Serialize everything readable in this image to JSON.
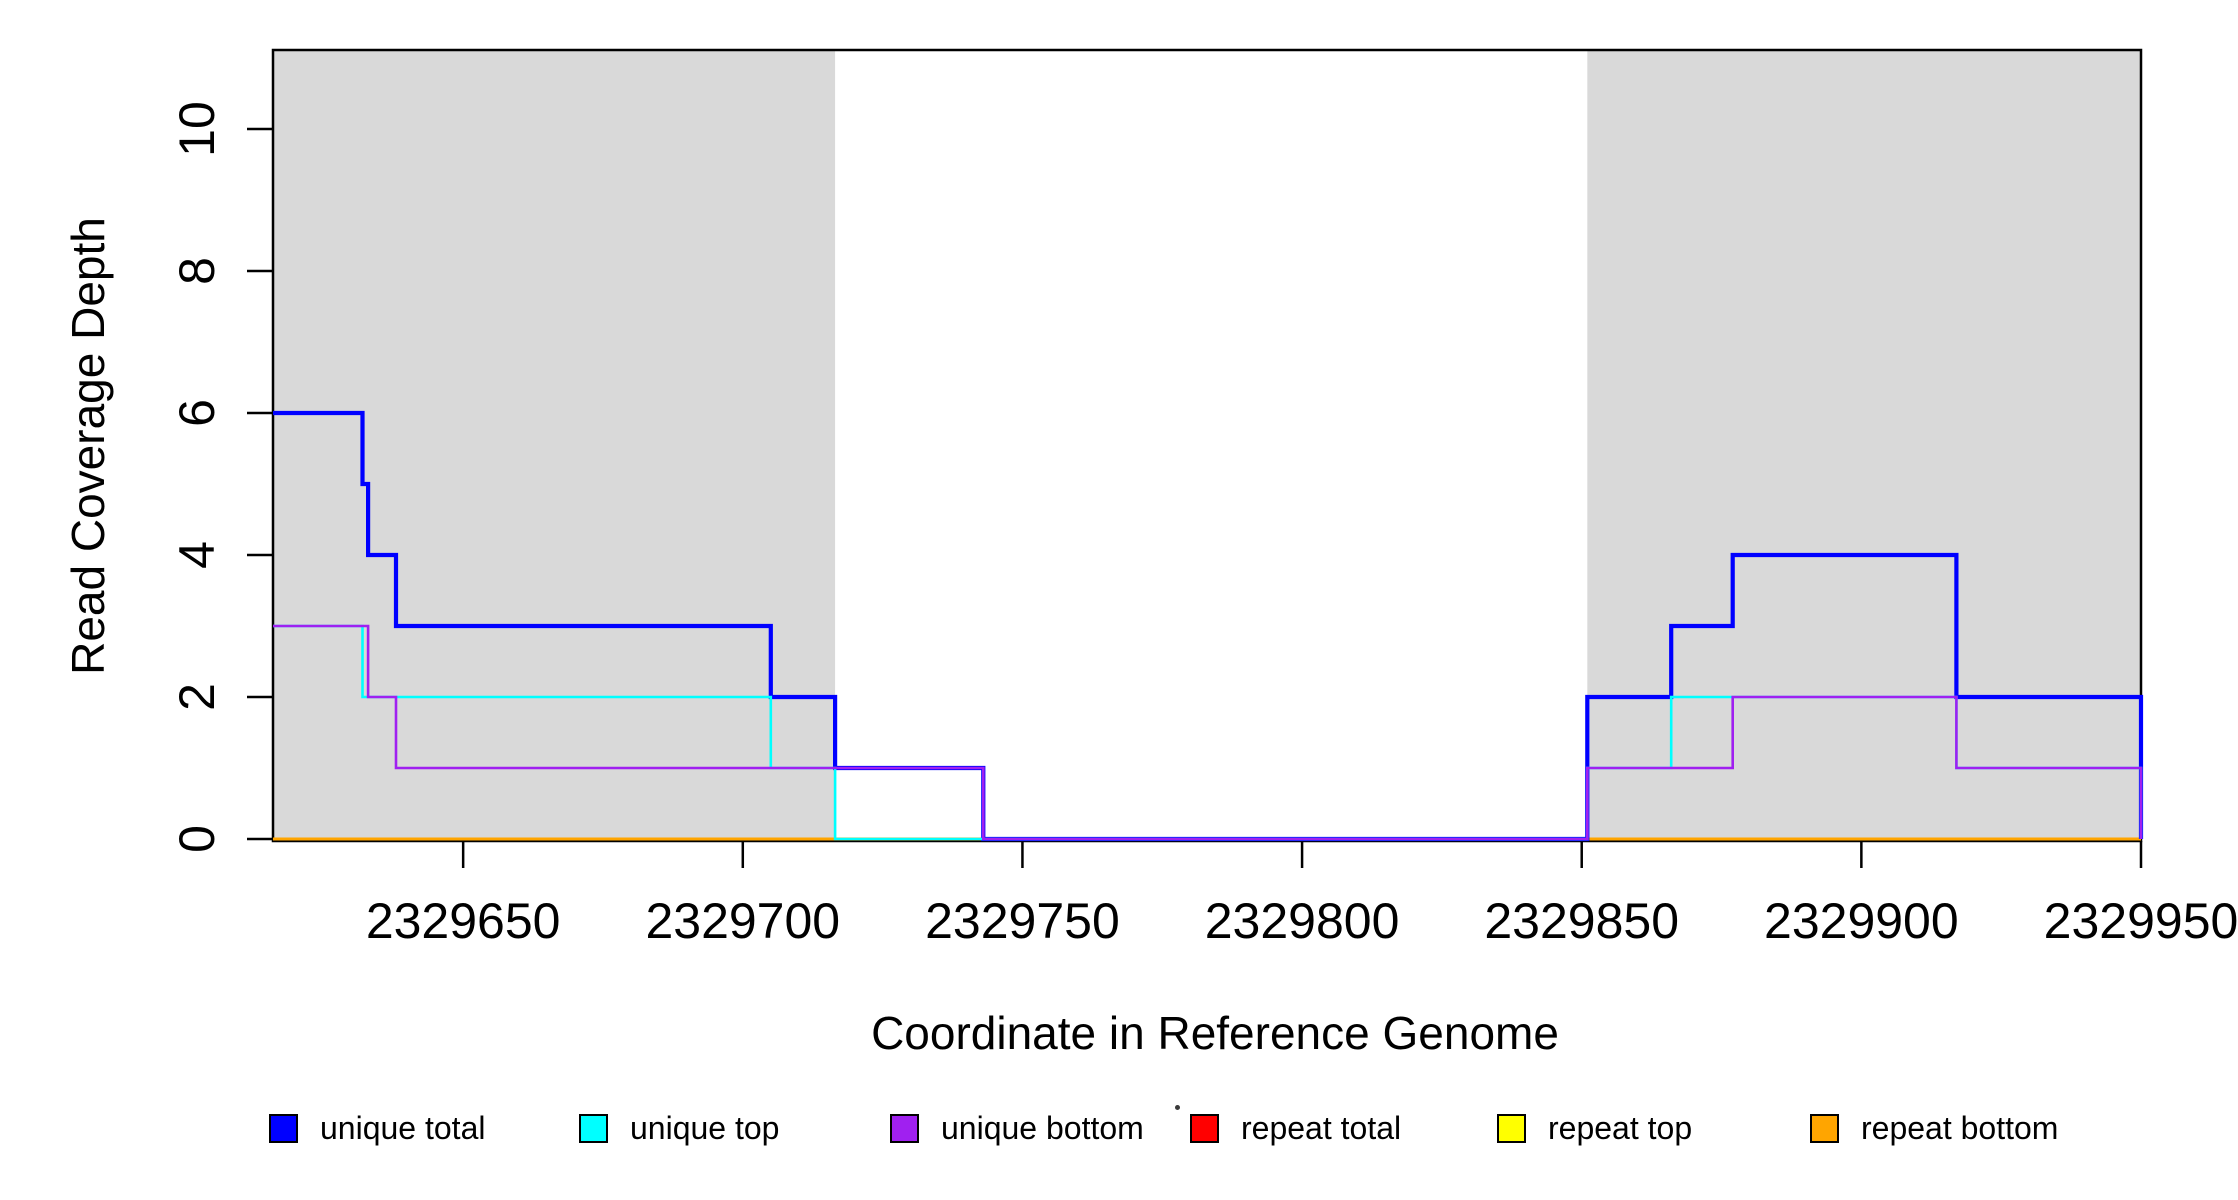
{
  "chart_data": {
    "type": "line",
    "subtype": "step",
    "title": "",
    "xlabel": "Coordinate in Reference Genome",
    "ylabel": "Read Coverage Depth",
    "xlim": [
      2329616,
      2329950
    ],
    "ylim": [
      0,
      11.1
    ],
    "x_ticks": [
      2329650,
      2329700,
      2329750,
      2329800,
      2329850,
      2329900,
      2329950
    ],
    "y_ticks": [
      0,
      2,
      4,
      6,
      8,
      10
    ],
    "grid": false,
    "legend_position": "bottom",
    "background_color": "#FFFFFF",
    "axis_color": "#000000",
    "shaded_region_color": "#D9D9D9",
    "shaded_regions": [
      {
        "x0": 2329616,
        "x1": 2329716.5
      },
      {
        "x0": 2329851,
        "x1": 2329950
      }
    ],
    "series": [
      {
        "name": "repeat total",
        "color": "#FF0000",
        "line_width": 2.4,
        "points": [
          [
            2329616,
            0
          ],
          [
            2329950,
            0
          ]
        ]
      },
      {
        "name": "repeat top",
        "color": "#FFFF00",
        "line_width": 2.4,
        "points": [
          [
            2329616,
            0
          ],
          [
            2329950,
            0
          ]
        ]
      },
      {
        "name": "repeat bottom",
        "color": "#FFA500",
        "line_width": 3,
        "points": [
          [
            2329616,
            0
          ],
          [
            2329950,
            0
          ]
        ]
      },
      {
        "name": "unique total",
        "color": "#0000FF",
        "line_width": 4.2,
        "points": [
          [
            2329616,
            6
          ],
          [
            2329632,
            5
          ],
          [
            2329633,
            4
          ],
          [
            2329638,
            3
          ],
          [
            2329705,
            2
          ],
          [
            2329716.5,
            1
          ],
          [
            2329743,
            0
          ],
          [
            2329851,
            2
          ],
          [
            2329866,
            3
          ],
          [
            2329877,
            4
          ],
          [
            2329917,
            2
          ],
          [
            2329950,
            0
          ]
        ]
      },
      {
        "name": "unique top",
        "color": "#00FFFF",
        "line_width": 2.6,
        "points": [
          [
            2329616,
            3
          ],
          [
            2329632,
            2
          ],
          [
            2329705,
            1
          ],
          [
            2329716.5,
            0
          ],
          [
            2329851,
            1
          ],
          [
            2329866,
            2
          ],
          [
            2329917,
            1
          ],
          [
            2329950,
            0
          ]
        ]
      },
      {
        "name": "unique bottom",
        "color": "#A020F0",
        "line_width": 2.6,
        "points": [
          [
            2329616,
            3
          ],
          [
            2329633,
            2
          ],
          [
            2329638,
            1
          ],
          [
            2329743,
            0
          ],
          [
            2329851,
            1
          ],
          [
            2329877,
            2
          ],
          [
            2329917,
            1
          ],
          [
            2329950,
            0
          ]
        ]
      }
    ],
    "legend": [
      {
        "label": "unique total",
        "color": "#0000FF"
      },
      {
        "label": "unique top",
        "color": "#00FFFF"
      },
      {
        "label": "unique bottom",
        "color": "#A020F0"
      },
      {
        "label": "repeat total",
        "color": "#FF0000"
      },
      {
        "label": "repeat top",
        "color": "#FFFF00"
      },
      {
        "label": "repeat bottom",
        "color": "#FFA500"
      }
    ]
  }
}
